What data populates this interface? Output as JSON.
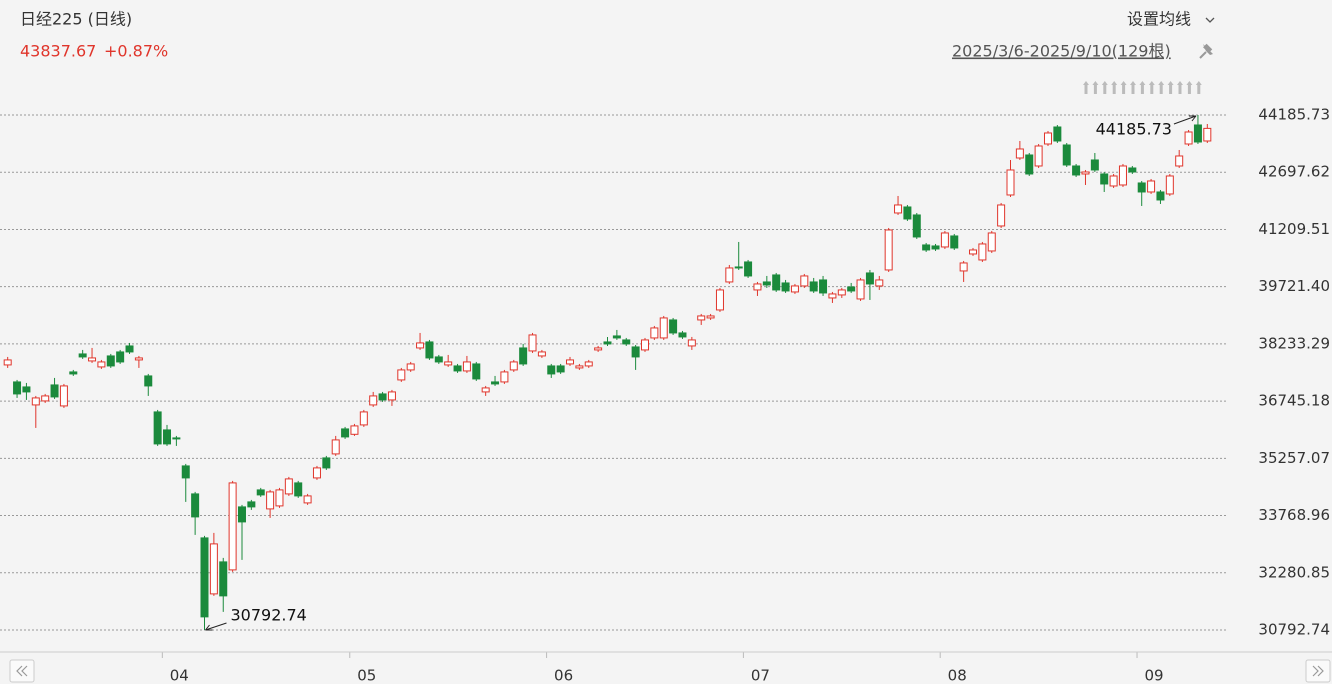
{
  "header": {
    "title": "日经225 (日线)",
    "price": "43837.67",
    "change": "+0.87%",
    "ma_setting": "设置均线",
    "range": "2025/3/6-2025/9/10(129根)"
  },
  "chart_data": {
    "type": "candlestick",
    "open": [
      37686,
      37244,
      37114,
      36646,
      36750,
      37166,
      36620,
      37504,
      37972,
      37790,
      37634,
      37920,
      38024,
      38180,
      37816,
      37400,
      36464,
      35996,
      35788,
      35060,
      34332,
      33188,
      31732,
      32564,
      32356,
      33994,
      34124,
      34436,
      33942,
      34020,
      34332,
      34618,
      34098,
      34748,
      35268,
      35372,
      36022,
      35882,
      36126,
      36646,
      36932,
      36776,
      37296,
      37556,
      38128,
      38284,
      37894,
      37686,
      37660,
      37530,
      37712,
      36984,
      37244,
      37244,
      37556,
      38128,
      38050,
      37920,
      37660,
      37660,
      37712,
      37608,
      37660,
      38076,
      38284,
      38440,
      38336,
      38154,
      38076,
      38388,
      38388,
      38856,
      38518,
      38180,
      38856,
      38908,
      39116,
      39844,
      40234,
      40364,
      39636,
      39844,
      40026,
      39818,
      39584,
      39740,
      39844,
      39896,
      39428,
      39506,
      39714,
      39402,
      40078,
      39740,
      40156,
      41638,
      41794,
      41586,
      40806,
      40780,
      40754,
      41040,
      40130,
      40572,
      40416,
      40650,
      41300,
      42106,
      43068,
      43146,
      42860,
      43432,
      43874,
      43406,
      42860,
      42652,
      43016,
      42652,
      42340,
      42366,
      42808,
      42418,
      42184,
      42184,
      42132,
      42860,
      43432,
      43926,
      43510
    ],
    "high": [
      37894,
      37296,
      37218,
      36880,
      36932,
      37348,
      37192,
      37556,
      38076,
      38128,
      37816,
      37972,
      38076,
      38258,
      37920,
      37452,
      36516,
      36126,
      35840,
      35112,
      34384,
      33240,
      33318,
      32668,
      34670,
      34046,
      34176,
      34488,
      34436,
      34488,
      34774,
      34670,
      34332,
      35060,
      35320,
      35840,
      36074,
      36152,
      36516,
      36984,
      36984,
      37036,
      37608,
      37764,
      38518,
      38336,
      37946,
      37946,
      37712,
      37920,
      37764,
      37140,
      37400,
      37556,
      37816,
      38232,
      38518,
      38076,
      37712,
      37712,
      37894,
      37712,
      37816,
      38180,
      38414,
      38596,
      38388,
      38206,
      38388,
      38700,
      38960,
      38908,
      38570,
      38414,
      39012,
      39012,
      39688,
      40286,
      40884,
      40416,
      39844,
      40000,
      40078,
      39896,
      39792,
      40052,
      39948,
      40000,
      39584,
      39688,
      39818,
      39948,
      40156,
      40000,
      41248,
      42080,
      41846,
      41638,
      40858,
      40832,
      41170,
      41092,
      40390,
      40728,
      40884,
      41170,
      41898,
      43016,
      43510,
      43198,
      43432,
      43770,
      43926,
      43458,
      42912,
      42756,
      43198,
      42704,
      42652,
      42912,
      42860,
      42470,
      42522,
      42236,
      42652,
      43276,
      43796,
      44185.73,
      43952
    ],
    "low": [
      37608,
      36828,
      36776,
      36048,
      36698,
      36802,
      36568,
      37400,
      37842,
      37738,
      37582,
      37608,
      37712,
      37972,
      37608,
      36880,
      35580,
      35580,
      35580,
      34124,
      33266,
      30792.74,
      31680,
      31264,
      32304,
      32616,
      33916,
      34254,
      33708,
      33968,
      34280,
      34228,
      34046,
      34696,
      34956,
      35320,
      35762,
      35840,
      36074,
      36594,
      36724,
      36620,
      37244,
      37504,
      38076,
      37816,
      37712,
      37634,
      37478,
      37478,
      37270,
      36880,
      37140,
      37192,
      37504,
      37660,
      37998,
      37868,
      37348,
      37452,
      37660,
      37556,
      37608,
      38024,
      38180,
      38336,
      38180,
      37556,
      38024,
      38336,
      38336,
      38466,
      38362,
      38076,
      38726,
      38856,
      39064,
      39792,
      40156,
      39948,
      39480,
      39688,
      39584,
      39558,
      39532,
      39688,
      39558,
      39480,
      39298,
      39428,
      39558,
      39350,
      39376,
      39636,
      40104,
      41586,
      41430,
      40962,
      40624,
      40650,
      40702,
      40676,
      39844,
      40520,
      40364,
      40598,
      41248,
      42054,
      43016,
      42600,
      42808,
      43380,
      43458,
      42834,
      42574,
      42366,
      42704,
      42184,
      42288,
      42314,
      42652,
      41820,
      42132,
      41872,
      42080,
      42808,
      43380,
      43432,
      43458
    ],
    "close": [
      37816,
      36932,
      36984,
      36828,
      36880,
      36854,
      37140,
      37452,
      37894,
      37868,
      37764,
      37660,
      37764,
      38024,
      37868,
      37140,
      35632,
      35632,
      35762,
      34748,
      33734,
      31134,
      33032,
      31680,
      34618,
      33604,
      33994,
      34306,
      34384,
      34436,
      34722,
      34280,
      34280,
      35008,
      35008,
      35736,
      35814,
      36100,
      36464,
      36880,
      36776,
      36984,
      37556,
      37712,
      38258,
      37868,
      37764,
      37764,
      37530,
      37764,
      37322,
      37088,
      37192,
      37504,
      37764,
      37712,
      38466,
      38024,
      37452,
      37504,
      37816,
      37660,
      37764,
      38128,
      38232,
      38388,
      38232,
      37894,
      38336,
      38648,
      38908,
      38518,
      38414,
      38336,
      38960,
      38960,
      39636,
      40208,
      40208,
      40000,
      39792,
      39766,
      39636,
      39610,
      39740,
      40000,
      39610,
      39558,
      39532,
      39636,
      39610,
      39896,
      39792,
      39896,
      41196,
      41846,
      41482,
      41014,
      40676,
      40702,
      41118,
      40728,
      40338,
      40676,
      40832,
      41118,
      41846,
      42756,
      43302,
      42652,
      43380,
      43718,
      43510,
      42886,
      42626,
      42704,
      42756,
      42392,
      42600,
      42860,
      42704,
      42184,
      42470,
      41976,
      42600,
      43120,
      43744,
      43484,
      43837.67
    ],
    "up_color": "#e0352b",
    "down_color": "#1b8a3c",
    "xlim": [
      -0.5,
      128.5
    ],
    "xticks": [
      {
        "value": 17,
        "label": "04"
      },
      {
        "value": 37,
        "label": "05"
      },
      {
        "value": 58,
        "label": "06"
      },
      {
        "value": 79,
        "label": "07"
      },
      {
        "value": 100,
        "label": "08"
      },
      {
        "value": 121,
        "label": "09"
      }
    ],
    "ylim": [
      30272.62,
      45616.05
    ],
    "yticks": [
      44185.73,
      42697.62,
      41209.51,
      {
        "value": 39721.4,
        "label": "39721.40"
      },
      38233.29,
      36745.18,
      35257.07,
      33768.96,
      32280.85,
      30792.74
    ],
    "grid": true,
    "max_label": 44185.73,
    "min_label": 30792.74
  }
}
